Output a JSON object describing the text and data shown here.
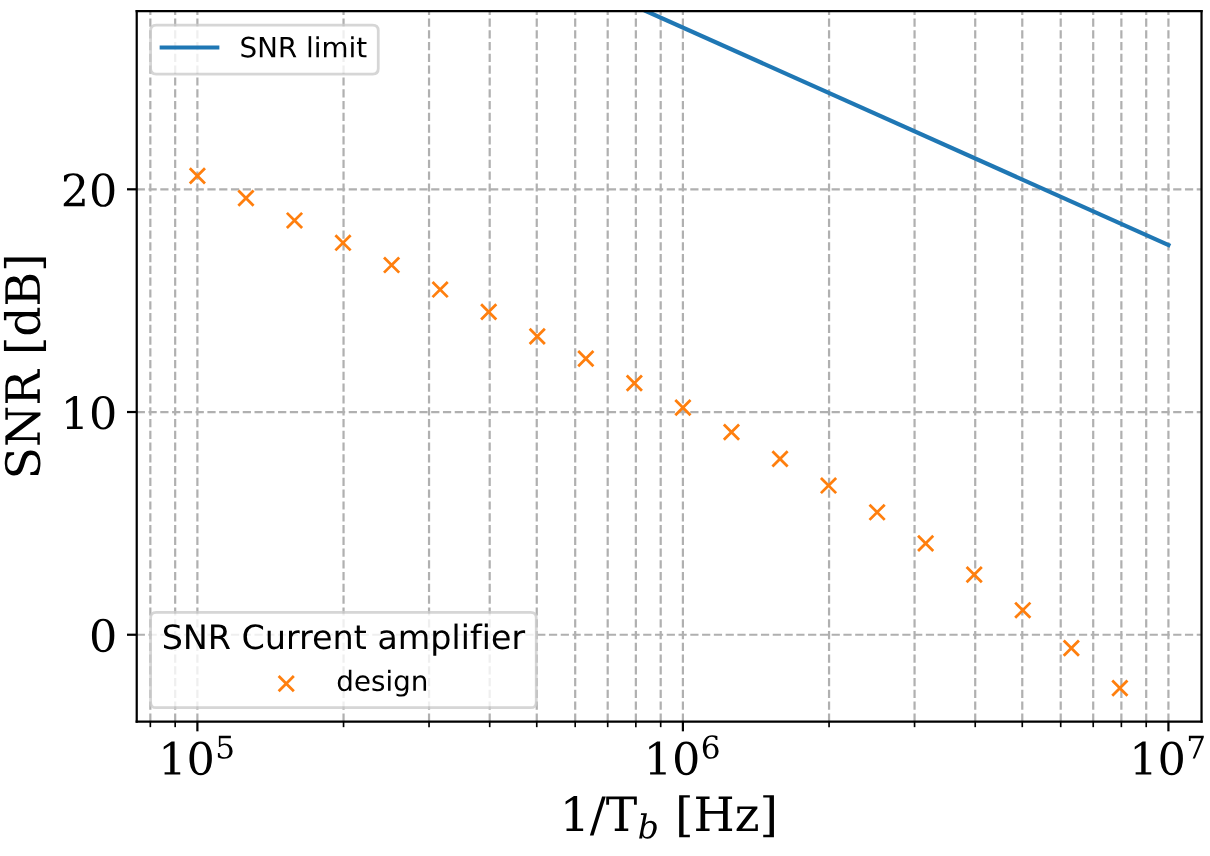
{
  "chart_data": {
    "type": "line",
    "xlabel": "1/T$_{b}$ [Hz]",
    "ylabel": "SNR [dB]",
    "legend_title": "SNR Current amplifier",
    "log": "x",
    "xlim": [
      75000,
      11700000
    ],
    "ylim": [
      -3.9,
      28
    ],
    "xticks": [
      {
        "value": 100000,
        "label": "10$^{5}$"
      },
      {
        "value": 1000000,
        "label": "10$^{6}$"
      },
      {
        "value": 10000000,
        "label": "10$^{7}$"
      }
    ],
    "yticks": [
      0,
      10,
      20
    ],
    "grid": true,
    "legend": "left",
    "series": [
      {
        "name": "SNR limit",
        "color": "#1f77b4",
        "marker": "none",
        "x": [
          840000,
          10000000
        ],
        "values": [
          28.0,
          17.5
        ]
      },
      {
        "name": "design",
        "type": "scatter",
        "color": "#ff7f0e",
        "marker": "cross",
        "x": [
          100000,
          125900,
          158500,
          199500,
          251200,
          316200,
          398100,
          501200,
          631000,
          794300,
          1000000,
          1259000,
          1585000,
          1995000,
          2512000,
          3162000,
          3981000,
          5012000,
          6310000,
          7943000
        ],
        "values": [
          20.6,
          19.6,
          18.6,
          17.6,
          16.6,
          15.5,
          14.5,
          13.4,
          12.4,
          11.3,
          10.2,
          9.1,
          7.9,
          6.7,
          5.5,
          4.1,
          2.7,
          1.1,
          -0.6,
          -2.4
        ]
      }
    ]
  }
}
